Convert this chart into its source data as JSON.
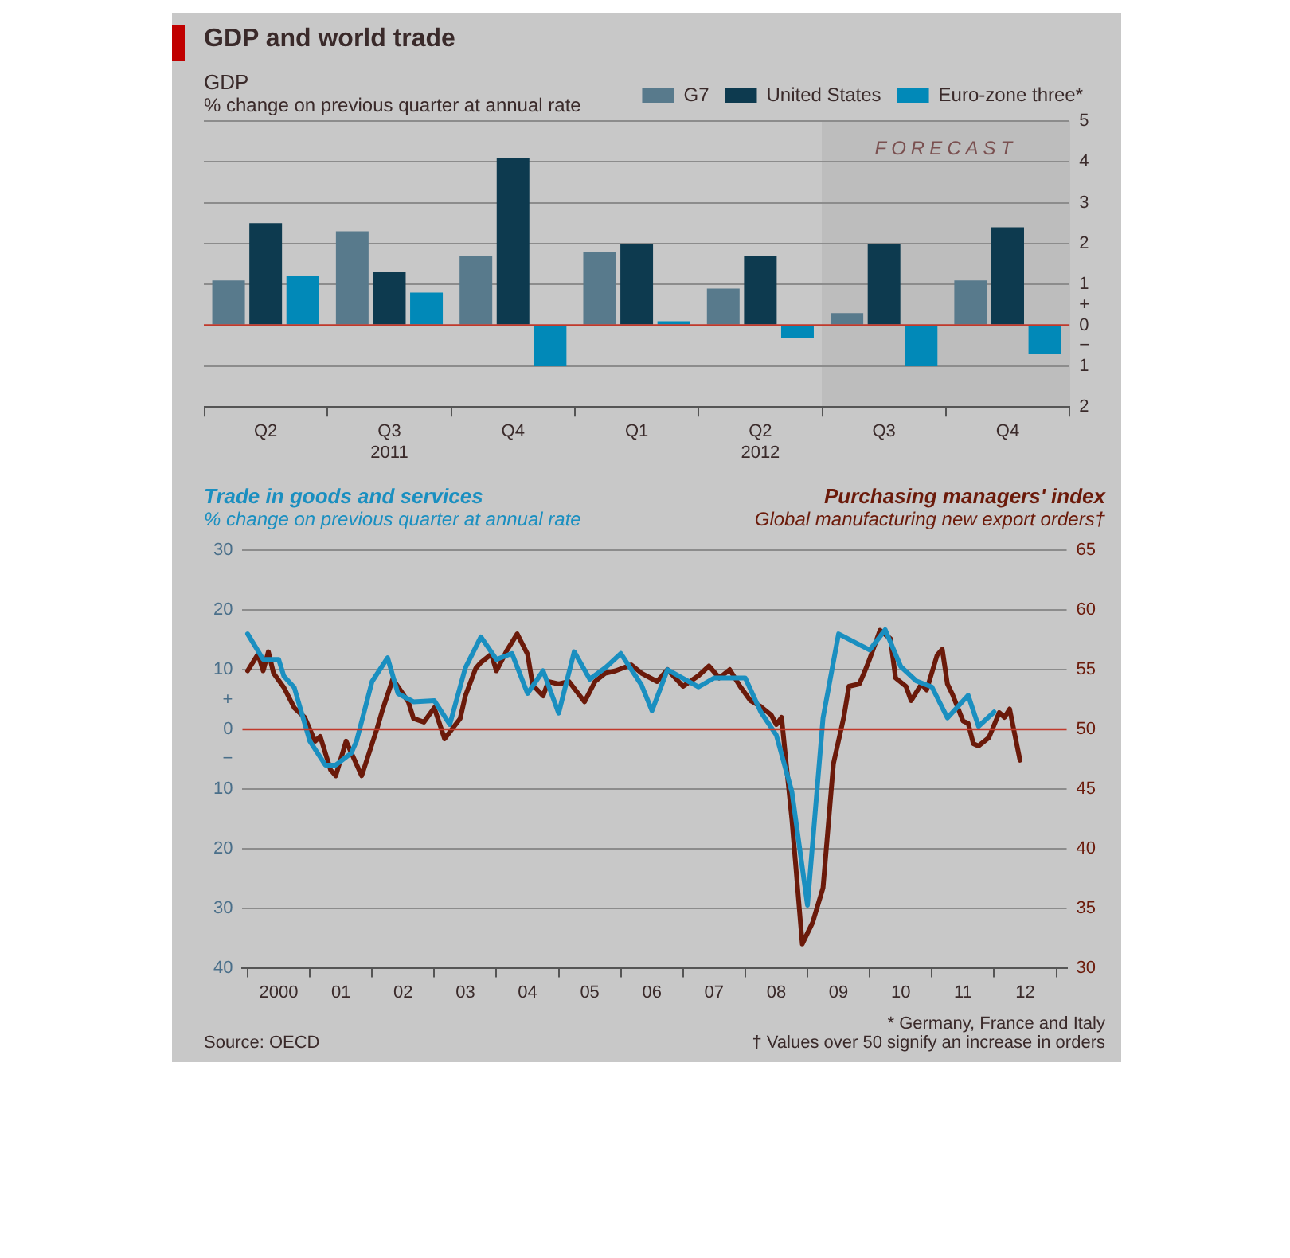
{
  "chart_data": [
    {
      "type": "other",
      "title": "GDP and world trade"
    },
    {
      "type": "bar",
      "title": "GDP",
      "subtitle": "% change on previous quarter at annual rate",
      "categories": [
        "Q2",
        "Q3\n2011",
        "Q4",
        "Q1",
        "Q2\n2012",
        "Q3",
        "Q4"
      ],
      "series": [
        {
          "name": "G7",
          "color": "#587a8c",
          "values": [
            1.1,
            2.3,
            1.7,
            1.8,
            0.9,
            0.3,
            1.1
          ]
        },
        {
          "name": "United States",
          "color": "#0d3a4f",
          "values": [
            2.5,
            1.3,
            4.1,
            2.0,
            1.7,
            2.0,
            2.4
          ]
        },
        {
          "name": "Euro-zone three*",
          "color": "#0189b8",
          "values": [
            1.2,
            0.8,
            -1.0,
            0.1,
            -0.3,
            -1.0,
            -0.7
          ]
        }
      ],
      "ylim": [
        -2,
        5
      ],
      "yticks": [
        5,
        4,
        3,
        2,
        1,
        {
          "value": 0.5,
          "label": "+"
        },
        0,
        {
          "value": -0.5,
          "label": "−"
        },
        {
          "value": -1,
          "label": "1"
        },
        {
          "value": -2,
          "label": "2"
        }
      ],
      "grid": "y",
      "legend": "top right",
      "ref_lines": [
        {
          "axis": "y",
          "value": 0,
          "color": "#c0392b"
        }
      ],
      "annotations": [
        "FORECAST"
      ]
    },
    {
      "type": "line",
      "ylabel": "% change on previous quarter at annual rate",
      "y2label": "Global manufacturing new export orders†",
      "series": [
        {
          "name": "Trade in goods and services",
          "color": "#1a8fc0",
          "x": [
            "2000-01",
            "2000-04",
            "2000-07",
            "2000-08",
            "2000-10",
            "2001-01",
            "2001-04",
            "2001-06",
            "2001-09",
            "2001-10",
            "2002-01",
            "2002-04",
            "2002-06",
            "2002-09",
            "2003-01",
            "2003-04",
            "2003-07",
            "2003-10",
            "2004-01",
            "2004-04",
            "2004-07",
            "2004-10",
            "2005-01",
            "2005-04",
            "2005-07",
            "2005-10",
            "2006-01",
            "2006-05",
            "2006-07",
            "2006-10",
            "2007-04",
            "2007-07",
            "2008-01",
            "2008-04",
            "2008-07",
            "2008-10",
            "2009-01",
            "2009-04",
            "2009-07",
            "2010-01",
            "2010-04",
            "2010-07",
            "2010-10",
            "2011-01",
            "2011-04",
            "2011-08",
            "2011-10",
            "2012-01"
          ],
          "values": [
            16,
            11.7,
            11.7,
            8.9,
            7,
            -2,
            -6,
            -6,
            -4,
            -2,
            8,
            12,
            6,
            4.6,
            4.8,
            0.8,
            10.3,
            15.5,
            11.7,
            12.7,
            6,
            9.8,
            2.7,
            13,
            8.4,
            10.3,
            12.7,
            7.4,
            3.1,
            10,
            7.1,
            8.6,
            8.6,
            2.9,
            -1,
            -10.5,
            -29.5,
            1.9,
            16,
            13.3,
            16.7,
            10.5,
            8.1,
            7.1,
            1.9,
            5.7,
            0.5,
            2.9
          ]
        },
        {
          "name": "Purchasing managers' index",
          "color": "#6b1a0a",
          "axis": "y2",
          "x": [
            "2000-01",
            "2000-03",
            "2000-04",
            "2000-05",
            "2000-06",
            "2000-08",
            "2000-10",
            "2000-12",
            "2001-02",
            "2001-03",
            "2001-05",
            "2001-06",
            "2001-08",
            "2001-11",
            "2002-02",
            "2002-03",
            "2002-05",
            "2002-08",
            "2002-09",
            "2002-11",
            "2003-01",
            "2003-03",
            "2003-06",
            "2003-07",
            "2003-09",
            "2003-10",
            "2003-12",
            "2004-01",
            "2004-03",
            "2004-05",
            "2004-07",
            "2004-08",
            "2004-10",
            "2004-11",
            "2005-01",
            "2005-03",
            "2005-06",
            "2005-08",
            "2005-10",
            "2005-12",
            "2006-03",
            "2006-05",
            "2006-08",
            "2006-10",
            "2007-01",
            "2007-04",
            "2007-06",
            "2007-08",
            "2007-10",
            "2007-12",
            "2008-02",
            "2008-04",
            "2008-06",
            "2008-07",
            "2008-08",
            "2008-10",
            "2008-12",
            "2009-02",
            "2009-04",
            "2009-06",
            "2009-08",
            "2009-09",
            "2009-11",
            "2009-12",
            "2010-01",
            "2010-03",
            "2010-05",
            "2010-06",
            "2010-08",
            "2010-09",
            "2010-11",
            "2010-12",
            "2011-02",
            "2011-03",
            "2011-04",
            "2011-05",
            "2011-07",
            "2011-08",
            "2011-09",
            "2011-10",
            "2011-12",
            "2012-02",
            "2012-03",
            "2012-04",
            "2012-06"
          ],
          "values": [
            54.9,
            56.3,
            54.9,
            56.5,
            54.7,
            53.5,
            51.8,
            51,
            49,
            49.4,
            46.6,
            46.1,
            49,
            46.1,
            50.1,
            51.6,
            54.2,
            52.3,
            50.9,
            50.6,
            51.8,
            49.2,
            50.9,
            52.8,
            55.1,
            55.6,
            56.3,
            54.9,
            56.6,
            58,
            56.3,
            53.7,
            52.8,
            54,
            53.8,
            54,
            52.3,
            54,
            54.7,
            54.9,
            55.4,
            54.7,
            54,
            55,
            53.6,
            54.5,
            55.3,
            54.3,
            55,
            53.6,
            52.4,
            51.9,
            51.2,
            50.4,
            51,
            42.4,
            32,
            33.8,
            36.7,
            47.1,
            51,
            53.6,
            53.8,
            54.8,
            55.9,
            58.3,
            57.6,
            54.3,
            53.6,
            52.4,
            53.8,
            53.3,
            56.2,
            56.7,
            53.8,
            52.9,
            50.7,
            50.5,
            48.8,
            48.6,
            49.3,
            51.4,
            51,
            51.7,
            47.4
          ]
        }
      ],
      "xlim": [
        "1999-12",
        "2013-03"
      ],
      "xticks": [
        {
          "value": "2000",
          "label": null
        },
        {
          "value": "2000-07",
          "label": "2000"
        },
        {
          "value": "2001",
          "label": null
        },
        {
          "value": "2001-07",
          "label": "01"
        },
        {
          "value": "2002",
          "label": null
        },
        {
          "value": "2002-07",
          "label": "02"
        },
        {
          "value": "2003",
          "label": null
        },
        {
          "value": "2003-07",
          "label": "03"
        },
        {
          "value": "2004",
          "label": null
        },
        {
          "value": "2004-07",
          "label": "04"
        },
        {
          "value": "2005",
          "label": null
        },
        {
          "value": "2005-07",
          "label": "05"
        },
        {
          "value": "2006",
          "label": null
        },
        {
          "value": "2006-07",
          "label": "06"
        },
        {
          "value": "2007",
          "label": null
        },
        {
          "value": "2007-07",
          "label": "07"
        },
        {
          "value": "2008",
          "label": null
        },
        {
          "value": "2008-07",
          "label": "08"
        },
        {
          "value": "2009",
          "label": null
        },
        {
          "value": "2009-07",
          "label": "09"
        },
        {
          "value": "2010",
          "label": null
        },
        {
          "value": "2010-07",
          "label": "10"
        },
        {
          "value": "2011",
          "label": null
        },
        {
          "value": "2011-07",
          "label": "11"
        },
        {
          "value": "2012",
          "label": null
        },
        {
          "value": "2012-07",
          "label": "12"
        },
        {
          "value": "2013",
          "label": null
        }
      ],
      "ylim": [
        -40,
        30
      ],
      "yticks": [
        30,
        20,
        10,
        {
          "value": 5,
          "label": "+"
        },
        0,
        {
          "value": -5,
          "label": "−"
        },
        {
          "value": -10,
          "label": "10"
        },
        {
          "value": -20,
          "label": "20"
        },
        {
          "value": -30,
          "label": "30"
        },
        {
          "value": -40,
          "label": "40"
        }
      ],
      "y2lim": [
        30,
        65
      ],
      "y2ticks": [
        30,
        35,
        40,
        45,
        50,
        55,
        60,
        65
      ],
      "grid": "y",
      "ref_lines": [
        {
          "axis": "y",
          "value": 0,
          "color": "#c0392b"
        }
      ],
      "annotations": [
        "* Germany, France and Italy",
        "† Values over 50 signify an increase in orders",
        "Source: OECD"
      ]
    }
  ]
}
